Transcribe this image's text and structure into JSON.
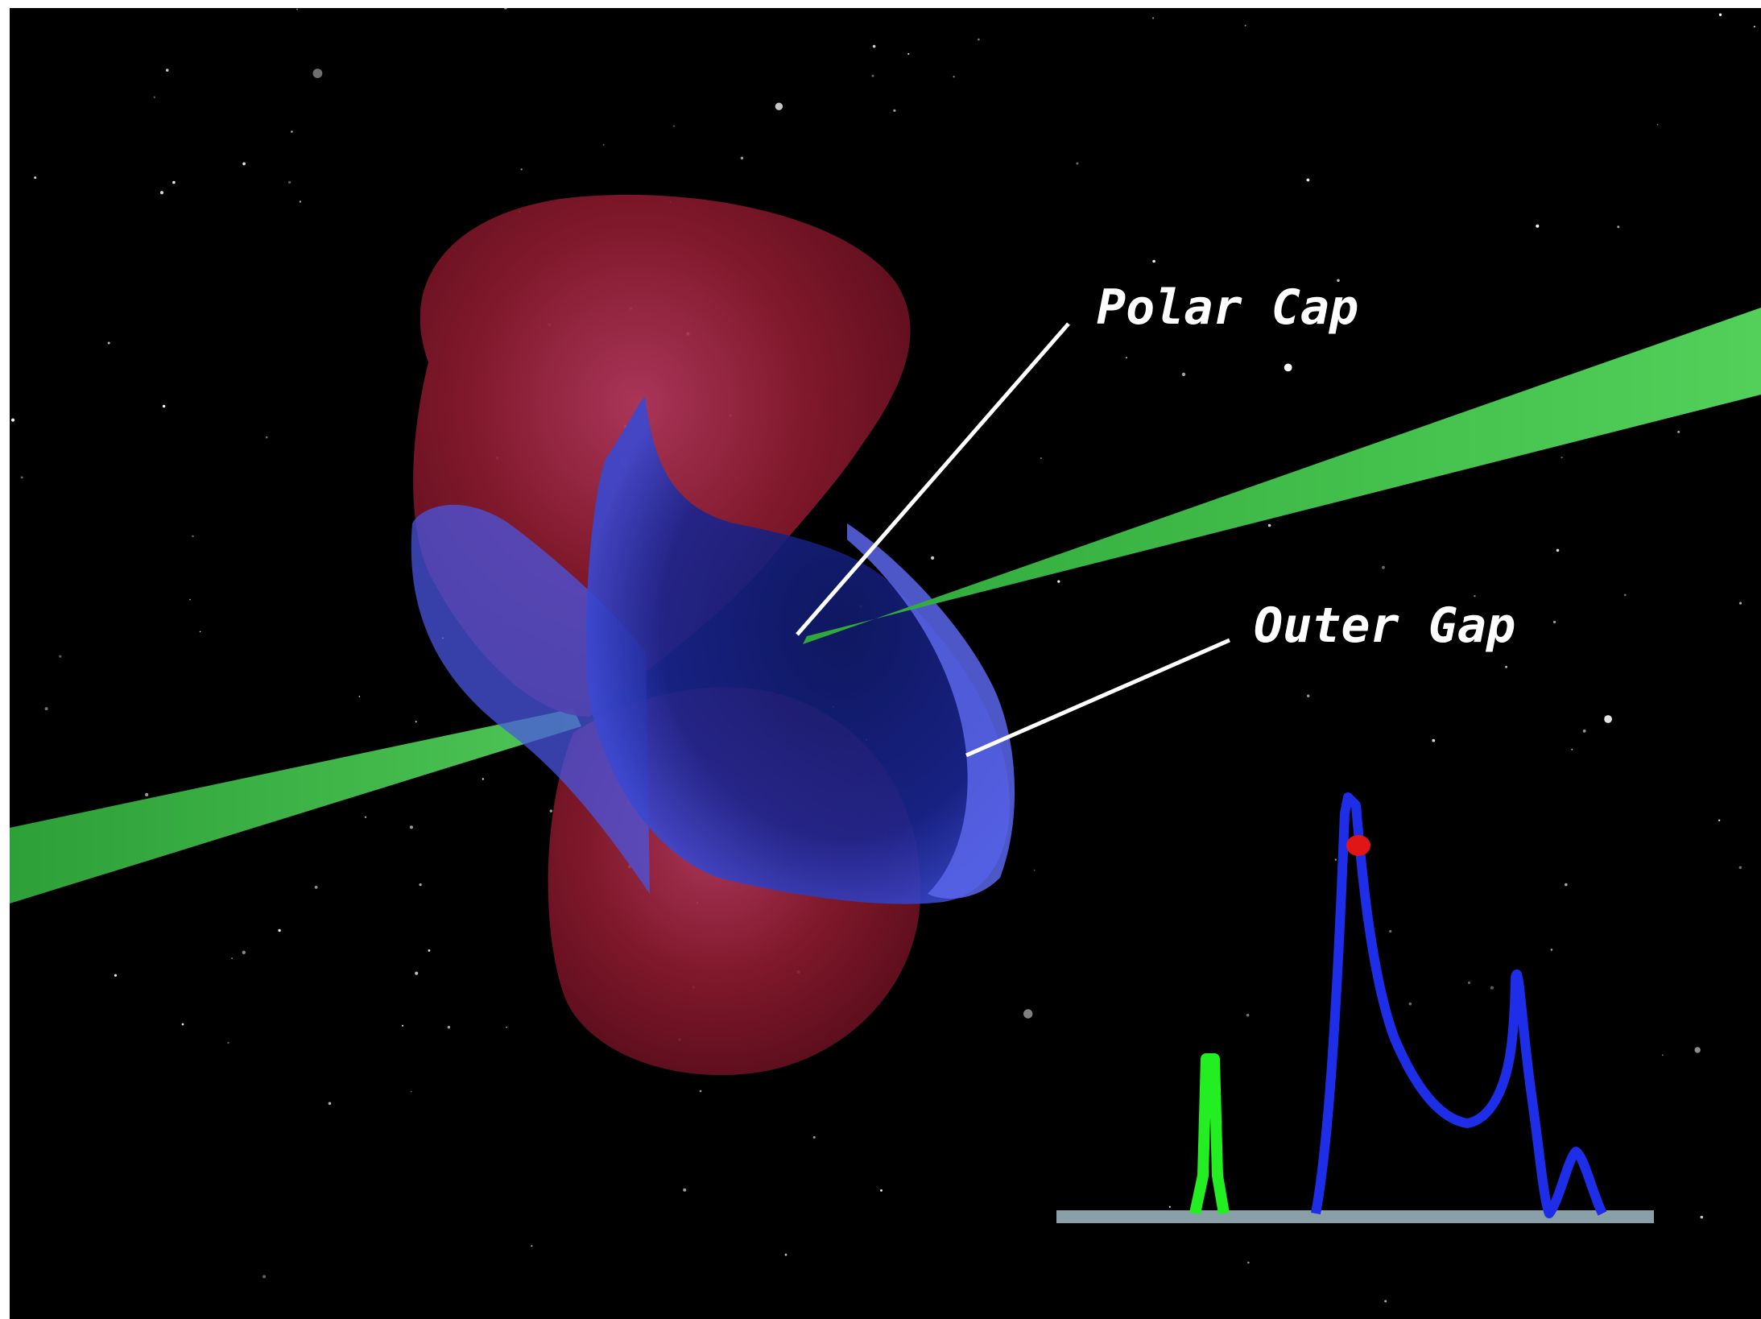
{
  "diagram": {
    "labels": {
      "polar_cap": "Polar Cap",
      "outer_gap": "Outer Gap"
    },
    "colors": {
      "background": "#000000",
      "polar_cap_surface": "#8a1a2e",
      "outer_gap_surface": "#4a55e0",
      "emission_beam": "#3ec24a",
      "blue_pulse_profile": "#1e2de8",
      "green_pulse_profile": "#22ee22",
      "profile_marker": "#e01515",
      "profile_baseline": "#8aa0a8",
      "leader_lines": "#ffffff"
    },
    "icons": {
      "neutron_star_model": "pulsar-magnetosphere-icon",
      "pulse_marker": "red-dot-icon"
    }
  }
}
